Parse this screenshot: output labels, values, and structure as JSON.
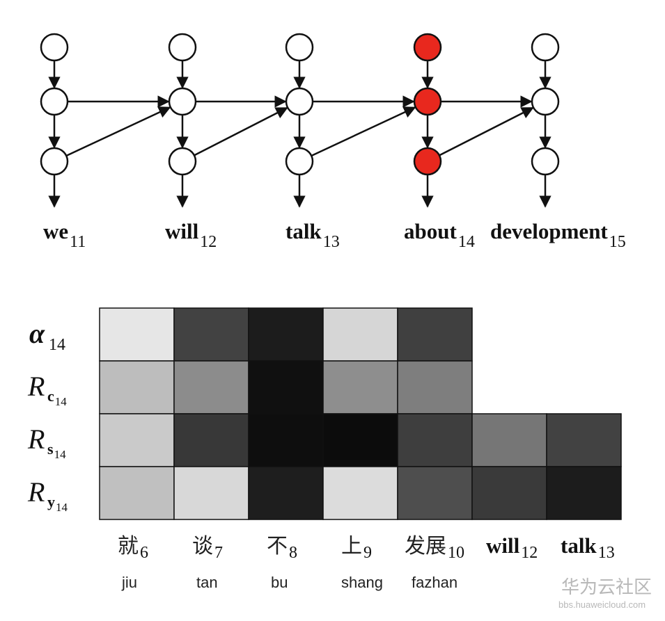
{
  "network": {
    "columns": [
      {
        "word": "we",
        "index": "11",
        "highlight": false
      },
      {
        "word": "will",
        "index": "12",
        "highlight": false
      },
      {
        "word": "talk",
        "index": "13",
        "highlight": false
      },
      {
        "word": "about",
        "index": "14",
        "highlight": true
      },
      {
        "word": "development",
        "index": "15",
        "highlight": false
      }
    ],
    "node_color": "#ffffff",
    "highlight_color": "#e8281e",
    "edge_color": "#111111"
  },
  "heatmap": {
    "rows": [
      {
        "symbol": "α",
        "sub": "14",
        "kind": "alpha"
      },
      {
        "symbol": "R",
        "sub": "c",
        "sub2": "14",
        "kind": "R"
      },
      {
        "symbol": "R",
        "sub": "s",
        "sub2": "14",
        "kind": "R"
      },
      {
        "symbol": "R",
        "sub": "y",
        "sub2": "14",
        "kind": "R"
      }
    ],
    "columns": [
      {
        "label": "就",
        "index": "6",
        "pinyin": "jiu",
        "bold": false
      },
      {
        "label": "谈",
        "index": "7",
        "pinyin": "tan",
        "bold": false
      },
      {
        "label": "不",
        "index": "8",
        "pinyin": "bu",
        "bold": false
      },
      {
        "label": "上",
        "index": "9",
        "pinyin": "shang",
        "bold": false
      },
      {
        "label": "发展",
        "index": "10",
        "pinyin": "fazhan",
        "bold": false
      },
      {
        "label": "will",
        "index": "12",
        "pinyin": "",
        "bold": true
      },
      {
        "label": "talk",
        "index": "13",
        "pinyin": "",
        "bold": true
      }
    ],
    "cells": [
      [
        "#e6e6e6",
        "#424242",
        "#1c1c1c",
        "#d6d6d6",
        "#404040",
        null,
        null
      ],
      [
        "#bdbdbd",
        "#8c8c8c",
        "#101010",
        "#8e8e8e",
        "#7e7e7e",
        null,
        null
      ],
      [
        "#cacaca",
        "#383838",
        "#0e0e0e",
        "#0c0c0c",
        "#3e3e3e",
        "#767676",
        "#424242"
      ],
      [
        "#c0c0c0",
        "#d8d8d8",
        "#1e1e1e",
        "#dcdcdc",
        "#4e4e4e",
        "#3a3a3a",
        "#1c1c1c"
      ]
    ]
  },
  "watermark": {
    "title": "华为云社区",
    "url": "bbs.huaweicloud.com"
  }
}
